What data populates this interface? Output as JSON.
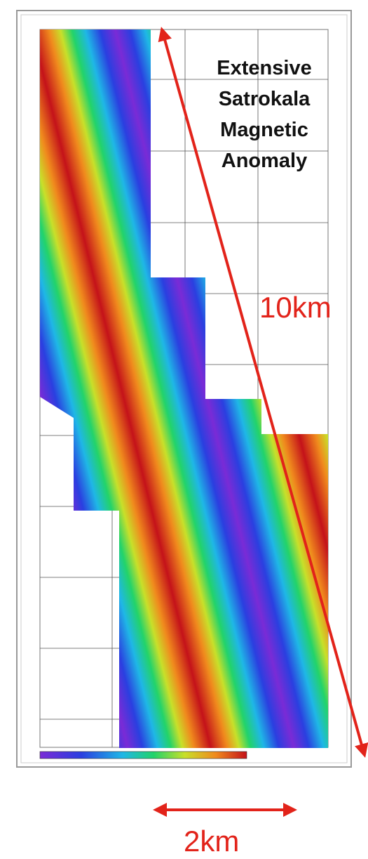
{
  "title": {
    "lines": [
      "Extensive",
      "Satrokala",
      "Magnetic",
      "Anomaly"
    ]
  },
  "scale_long": "10km",
  "scale_short": "2km"
}
